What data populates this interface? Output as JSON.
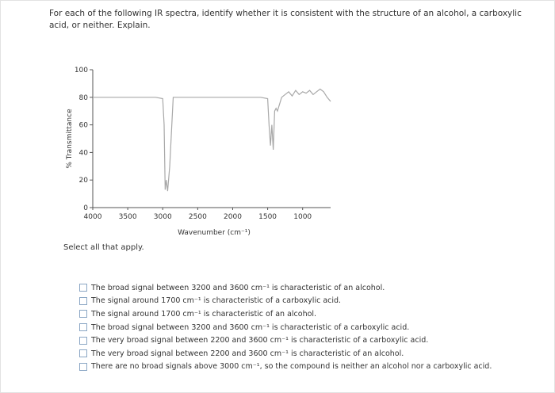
{
  "question": "For each of the following IR spectra, identify whether it is consistent with the structure of an alcohol, a carboxylic acid, or neither. Explain.",
  "chart_data": {
    "type": "line",
    "xlabel": "Wavenumber (cm⁻¹)",
    "ylabel": "% Transmittance",
    "color": "#a8a8a8",
    "x": [
      4000,
      3500,
      3100,
      3000,
      2980,
      2965,
      2950,
      2930,
      2900,
      2870,
      2850,
      2500,
      2000,
      1600,
      1500,
      1480,
      1460,
      1440,
      1420,
      1400,
      1380,
      1360,
      1300,
      1250,
      1200,
      1150,
      1100,
      1050,
      1000,
      950,
      900,
      850,
      800,
      750,
      700,
      650,
      600
    ],
    "values": [
      80,
      80,
      80,
      79,
      60,
      13,
      20,
      12,
      30,
      60,
      80,
      80,
      80,
      80,
      79,
      60,
      45,
      60,
      42,
      70,
      72,
      70,
      80,
      82,
      84,
      81,
      85,
      82,
      84,
      83,
      85,
      82,
      84,
      86,
      84,
      80,
      77
    ],
    "xlim": [
      4000,
      600
    ],
    "xticks": [
      4000,
      3500,
      3000,
      2500,
      2000,
      1500,
      1000
    ],
    "ylim": [
      0,
      100
    ],
    "yticks": [
      0,
      20,
      40,
      60,
      80,
      100
    ]
  },
  "prompt": "Select all that apply.",
  "options": [
    "The broad signal between 3200 and 3600 cm⁻¹ is characteristic of an alcohol.",
    "The signal around 1700 cm⁻¹ is characteristic of a carboxylic acid.",
    "The signal around 1700 cm⁻¹ is characteristic of an alcohol.",
    "The broad signal between 3200 and 3600 cm⁻¹ is characteristic of a carboxylic acid.",
    "The very broad signal between 2200 and 3600 cm⁻¹ is characteristic of a carboxylic acid.",
    "The very broad signal between 2200 and 3600 cm⁻¹ is characteristic of an alcohol.",
    "There are no broad signals above 3000 cm⁻¹, so the compound is neither an alcohol nor a carboxylic acid."
  ]
}
